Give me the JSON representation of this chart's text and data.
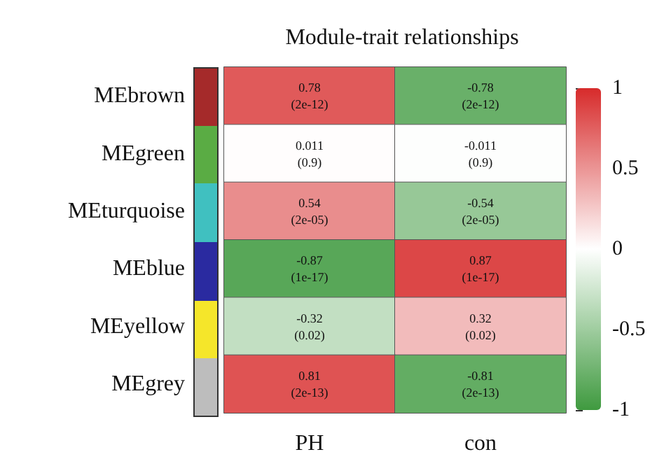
{
  "chart_data": {
    "type": "heatmap",
    "title": "Module-trait relationships",
    "categories": [
      "PH",
      "con"
    ],
    "y_categories": [
      "MEbrown",
      "MEgreen",
      "MEturquoise",
      "MEblue",
      "MEyellow",
      "MEgrey"
    ],
    "cells": [
      [
        0.78,
        -0.78
      ],
      [
        0.011,
        -0.011
      ],
      [
        0.54,
        -0.54
      ],
      [
        -0.87,
        0.87
      ],
      [
        -0.32,
        0.32
      ],
      [
        0.81,
        -0.81
      ]
    ],
    "cell_labels": [
      [
        "0.78\n(2e-12)",
        "-0.78\n(2e-12)"
      ],
      [
        "0.011\n(0.9)",
        "-0.011\n(0.9)"
      ],
      [
        "0.54\n(2e-05)",
        "-0.54\n(2e-05)"
      ],
      [
        "-0.87\n(1e-17)",
        "0.87\n(1e-17)"
      ],
      [
        "-0.32\n(0.02)",
        "0.32\n(0.02)"
      ],
      [
        "0.81\n(2e-13)",
        "-0.81\n(2e-13)"
      ]
    ],
    "clim": [
      -1,
      1
    ],
    "cticks": [
      -1,
      -0.5,
      0,
      0.5,
      1
    ]
  }
}
